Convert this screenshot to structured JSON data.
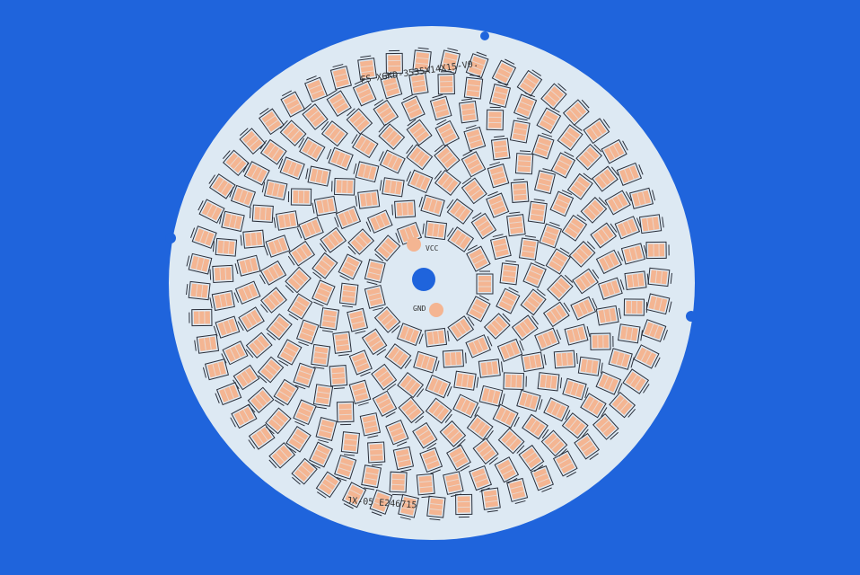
{
  "board": {
    "part_number": "FS-XGKD-3535X14X15-V0.",
    "vcc_label": "VCC",
    "gnd_label": "GND",
    "lot_code": "JX-05 E246715"
  },
  "colors": {
    "background": "#1f64dc",
    "board": "#dde9f3",
    "pad": "#f4b592",
    "pad_outline": "#2a2f3a"
  }
}
